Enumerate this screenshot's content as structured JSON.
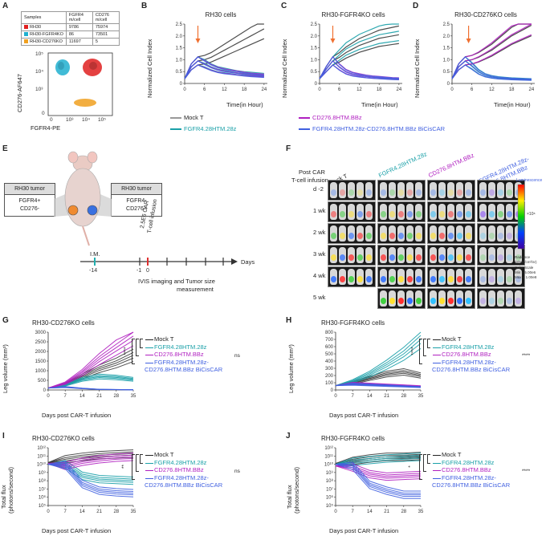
{
  "panels": {
    "A": {
      "label": "A",
      "table_headers": [
        "Samples",
        "FGFR4 m/cell",
        "CD276 m/cell"
      ],
      "rows": [
        {
          "name": "RH30",
          "fgfr4": "9786",
          "cd276": "75974",
          "color": "#e02020"
        },
        {
          "name": "RH30-FGFR4KO",
          "fgfr4": "86",
          "cd276": "73501",
          "color": "#20b0d0"
        },
        {
          "name": "RH30-CD276KO",
          "fgfr4": "11697",
          "cd276": "5",
          "color": "#f0a020"
        }
      ],
      "flow": {
        "ylabel": "CD276-AF647",
        "xlabel": "FGFR4-PE",
        "xticks": [
          "0",
          "10³",
          "10⁴",
          "10⁵"
        ],
        "yticks": [
          "10⁵",
          "10⁴",
          "10³",
          "0"
        ]
      }
    },
    "B": {
      "label": "B",
      "title": "RH30 cells"
    },
    "C": {
      "label": "C",
      "title": "RH30-FGFR4KO cells"
    },
    "D": {
      "label": "D",
      "title": "RH30-CD276KO cells"
    },
    "rtca_common": {
      "ylabel": "Normalized Cell Index",
      "xlabel": "Time(in Hour)",
      "yticks": [
        "0",
        "0.5",
        "1.0",
        "1.5",
        "2.0",
        "2.5"
      ],
      "xticks": [
        "0",
        "6",
        "12",
        "18",
        "24"
      ]
    },
    "legend_top": {
      "mock": "Mock T",
      "fgfr4": "FGFR4.28HTM.28z",
      "cd276": "CD276.8HTM.BBz",
      "bicis": "FGFR4.28HTM.28z-CD276.8HTM.BBz BiCisCAR"
    },
    "E": {
      "label": "E",
      "left_box_header": "RH30 tumor",
      "left_box_body_1": "FGFR4+",
      "left_box_body_2": "CD276-",
      "right_box_header": "RH30 tumor",
      "right_box_body_1": "FGFR4-",
      "right_box_body_2": "CD276+",
      "im_label": "I.M.",
      "car_label_1": "2.5E6 CAR",
      "car_label_2": "T-cell infusion",
      "days_label": "Days",
      "tick_m14": "-14",
      "tick_m1": "-1",
      "tick_0": "0",
      "ivis_label_1": "IVIS imaging and Tumor size",
      "ivis_label_2": "measurement"
    },
    "F": {
      "label": "F",
      "row_header_1": "Post CAR",
      "row_header_2": "T-cell infusion",
      "col_headers": [
        "Mock T",
        "FGFR4.28HTM.28z",
        "CD276.8HTM.BBz",
        "FGFR4.28HTM.28z-\nCD276.8HTM.BBz"
      ],
      "rows": [
        "d -2",
        "1 wk",
        "2 wk",
        "3 wk",
        "4 wk",
        "5 wk"
      ],
      "scale_title": "Luminescence",
      "scale_unit": "×10⁸",
      "scale_note_1": "Radiance",
      "scale_note_2": "(p/sec/cm²/sr)",
      "scale_note_3": "Color Scale",
      "scale_note_4": "Min = 5.00e6",
      "scale_note_5": "Max = 1.00e8"
    },
    "G": {
      "label": "G",
      "title": "RH30-CD276KO cells",
      "ylabel": "Leg volume (mm³)",
      "yticks": [
        "0",
        "500",
        "1000",
        "1500",
        "2000",
        "2500",
        "3000"
      ]
    },
    "H": {
      "label": "H",
      "title": "RH30-FGFR4KO cells",
      "ylabel": "Leg volume (mm³)",
      "yticks": [
        "0",
        "100",
        "200",
        "300",
        "400",
        "500",
        "600",
        "700",
        "800"
      ]
    },
    "I": {
      "label": "I",
      "title": "RH30-CD276KO cells",
      "ylabel_1": "Total flux",
      "ylabel_2": "(photons/second)",
      "yticks": [
        "10⁵",
        "10⁶",
        "10⁷",
        "10⁸",
        "10⁹",
        "10¹⁰",
        "10¹¹",
        "10¹²"
      ]
    },
    "J": {
      "label": "J",
      "title": "RH30-FGFR4KO cells",
      "ylabel_1": "Total flux",
      "ylabel_2": "(photons/second)",
      "yticks": [
        "10⁵",
        "10⁶",
        "10⁷",
        "10⁸",
        "10⁹",
        "10¹⁰",
        "10¹¹",
        "10¹²"
      ]
    },
    "invivo_common": {
      "xlabel": "Days post CAR-T infusion",
      "xticks": [
        "0",
        "7",
        "14",
        "21",
        "28",
        "35"
      ],
      "leg_mock": "Mock T",
      "leg_fgfr4": "FGFR4.28HTM.28z",
      "leg_cd276": "CD276.8HTM.BBz",
      "leg_bicis_1": "FGFR4.28HTM.28z-",
      "leg_bicis_2": "CD276.8HTM.BBz BiCisCAR",
      "sig_stars": "****",
      "sig_ns": "ns",
      "sig_2": "**",
      "sig_1": "*"
    }
  },
  "colors": {
    "mock": "#3a3a3a",
    "fgfr4": "#1aa0a8",
    "cd276": "#b020c0",
    "bicis": "#4060e0",
    "arrow": "#f07030",
    "im_tick": "#20b0b0",
    "car_tick": "#e03030"
  },
  "chart_data": [
    {
      "type": "line",
      "panel": "B",
      "title": "RH30 cells",
      "xlabel": "Time(in Hour)",
      "ylabel": "Normalized Cell Index",
      "xlim": [
        0,
        25
      ],
      "ylim": [
        0,
        2.5
      ],
      "arrow_x": 4,
      "x": [
        0,
        2,
        4,
        6,
        8,
        10,
        12,
        14,
        16,
        18,
        20,
        22,
        24
      ],
      "series": [
        {
          "name": "Mock T",
          "values": [
            0.2,
            0.7,
            0.95,
            1.0,
            1.1,
            1.25,
            1.4,
            1.55,
            1.7,
            1.85,
            2.0,
            2.15,
            2.3
          ]
        },
        {
          "name": "FGFR4.28HTM.28z",
          "values": [
            0.2,
            0.7,
            0.95,
            0.85,
            0.7,
            0.6,
            0.55,
            0.5,
            0.45,
            0.42,
            0.4,
            0.38,
            0.36
          ]
        },
        {
          "name": "CD276.8HTM.BBz",
          "values": [
            0.2,
            0.7,
            0.95,
            0.82,
            0.68,
            0.58,
            0.52,
            0.48,
            0.44,
            0.4,
            0.37,
            0.35,
            0.33
          ]
        },
        {
          "name": "FGFR4.28HTM.28z-CD276.8HTM.BBz BiCisCAR",
          "values": [
            0.2,
            0.7,
            0.95,
            0.8,
            0.66,
            0.56,
            0.5,
            0.46,
            0.42,
            0.38,
            0.35,
            0.33,
            0.31
          ]
        }
      ]
    },
    {
      "type": "line",
      "panel": "C",
      "title": "RH30-FGFR4KO cells",
      "xlabel": "Time(in Hour)",
      "ylabel": "Normalized Cell Index",
      "xlim": [
        0,
        25
      ],
      "ylim": [
        0,
        2.5
      ],
      "arrow_x": 4,
      "x": [
        0,
        2,
        4,
        6,
        8,
        10,
        12,
        14,
        16,
        18,
        20,
        22,
        24
      ],
      "series": [
        {
          "name": "Mock T",
          "values": [
            0.2,
            0.6,
            0.95,
            1.1,
            1.3,
            1.45,
            1.6,
            1.7,
            1.8,
            1.9,
            1.95,
            2.0,
            2.05
          ]
        },
        {
          "name": "FGFR4.28HTM.28z",
          "values": [
            0.2,
            0.6,
            0.95,
            1.2,
            1.45,
            1.6,
            1.75,
            1.85,
            1.95,
            2.05,
            2.1,
            2.15,
            2.2
          ]
        },
        {
          "name": "CD276.8HTM.BBz",
          "values": [
            0.2,
            0.6,
            0.95,
            0.7,
            0.5,
            0.4,
            0.35,
            0.3,
            0.27,
            0.25,
            0.23,
            0.21,
            0.2
          ]
        },
        {
          "name": "FGFR4.28HTM.28z-CD276.8HTM.BBz BiCisCAR",
          "values": [
            0.2,
            0.6,
            0.95,
            0.68,
            0.48,
            0.38,
            0.33,
            0.29,
            0.26,
            0.24,
            0.22,
            0.2,
            0.19
          ]
        }
      ]
    },
    {
      "type": "line",
      "panel": "D",
      "title": "RH30-CD276KO cells",
      "xlabel": "Time(in Hour)",
      "ylabel": "Normalized Cell Index",
      "xlim": [
        0,
        25
      ],
      "ylim": [
        0,
        2.5
      ],
      "arrow_x": 5,
      "x": [
        0,
        2,
        4,
        6,
        8,
        10,
        12,
        14,
        16,
        18,
        20,
        22,
        24
      ],
      "series": [
        {
          "name": "Mock T",
          "values": [
            0.2,
            0.7,
            0.95,
            1.0,
            1.1,
            1.25,
            1.4,
            1.6,
            1.8,
            2.0,
            2.15,
            2.3,
            2.45
          ]
        },
        {
          "name": "FGFR4.28HTM.28z",
          "values": [
            0.2,
            0.7,
            0.95,
            0.75,
            0.5,
            0.35,
            0.28,
            0.24,
            0.22,
            0.2,
            0.19,
            0.18,
            0.17
          ]
        },
        {
          "name": "CD276.8HTM.BBz",
          "values": [
            0.2,
            0.7,
            0.95,
            1.0,
            1.12,
            1.28,
            1.45,
            1.65,
            1.85,
            2.05,
            2.2,
            2.35,
            2.5
          ]
        },
        {
          "name": "FGFR4.28HTM.28z-CD276.8HTM.BBz BiCisCAR",
          "values": [
            0.2,
            0.7,
            0.95,
            0.72,
            0.48,
            0.34,
            0.27,
            0.23,
            0.21,
            0.19,
            0.18,
            0.17,
            0.16
          ]
        }
      ]
    },
    {
      "type": "line",
      "panel": "G",
      "title": "RH30-CD276KO cells",
      "xlabel": "Days post CAR-T infusion",
      "ylabel": "Leg volume (mm³)",
      "xlim": [
        0,
        35
      ],
      "ylim": [
        0,
        3000
      ],
      "x": [
        0,
        7,
        14,
        21,
        28,
        35
      ],
      "series": [
        {
          "name": "Mock T",
          "values": [
            100,
            300,
            700,
            1100,
            1400,
            1800
          ]
        },
        {
          "name": "FGFR4.28HTM.28z",
          "values": [
            100,
            250,
            550,
            700,
            650,
            550
          ]
        },
        {
          "name": "CD276.8HTM.BBz",
          "values": [
            100,
            350,
            900,
            1600,
            2200,
            2800
          ]
        },
        {
          "name": "FGFR4.28HTM.28z-CD276.8HTM.BBz BiCisCAR",
          "values": [
            100,
            150,
            80,
            30,
            20,
            10
          ]
        }
      ]
    },
    {
      "type": "line",
      "panel": "H",
      "title": "RH30-FGFR4KO cells",
      "xlabel": "Days post CAR-T infusion",
      "ylabel": "Leg volume (mm³)",
      "xlim": [
        0,
        35
      ],
      "ylim": [
        0,
        800
      ],
      "x": [
        0,
        7,
        14,
        21,
        28,
        35
      ],
      "series": [
        {
          "name": "Mock T",
          "values": [
            60,
            100,
            160,
            220,
            250,
            200
          ]
        },
        {
          "name": "FGFR4.28HTM.28z",
          "values": [
            60,
            120,
            220,
            350,
            500,
            700
          ]
        },
        {
          "name": "CD276.8HTM.BBz",
          "values": [
            60,
            90,
            80,
            70,
            60,
            50
          ]
        },
        {
          "name": "FGFR4.28HTM.28z-CD276.8HTM.BBz BiCisCAR",
          "values": [
            60,
            80,
            70,
            60,
            50,
            40
          ]
        }
      ]
    },
    {
      "type": "line",
      "panel": "I",
      "title": "RH30-CD276KO cells",
      "xlabel": "Days post CAR-T infusion",
      "ylabel": "Total flux (photons/second)",
      "yscale": "log",
      "xlim": [
        0,
        35
      ],
      "ylim_log10": [
        5,
        12
      ],
      "x": [
        0,
        7,
        14,
        21,
        28,
        35
      ],
      "series": [
        {
          "name": "Mock T",
          "values_log10": [
            10.2,
            10.6,
            10.9,
            11.1,
            11.2,
            11.3
          ]
        },
        {
          "name": "FGFR4.28HTM.28z",
          "values_log10": [
            10.0,
            10.0,
            8.6,
            8.2,
            8.1,
            8.0
          ]
        },
        {
          "name": "CD276.8HTM.BBz",
          "values_log10": [
            10.1,
            9.8,
            10.3,
            10.6,
            10.8,
            10.9
          ]
        },
        {
          "name": "FGFR4.28HTM.28z-CD276.8HTM.BBz BiCisCAR",
          "values_log10": [
            10.0,
            9.9,
            7.6,
            6.8,
            6.6,
            6.5
          ]
        }
      ]
    },
    {
      "type": "line",
      "panel": "J",
      "title": "RH30-FGFR4KO cells",
      "xlabel": "Days post CAR-T infusion",
      "ylabel": "Total flux (photons/second)",
      "yscale": "log",
      "xlim": [
        0,
        35
      ],
      "ylim_log10": [
        5,
        12
      ],
      "x": [
        0,
        7,
        14,
        21,
        28,
        35
      ],
      "series": [
        {
          "name": "Mock T",
          "values_log10": [
            10.1,
            10.4,
            10.7,
            10.9,
            10.9,
            11.0
          ]
        },
        {
          "name": "FGFR4.28HTM.28z",
          "values_log10": [
            10.0,
            10.3,
            10.5,
            10.7,
            10.8,
            10.9
          ]
        },
        {
          "name": "CD276.8HTM.BBz",
          "values_log10": [
            9.8,
            9.6,
            8.8,
            8.5,
            8.6,
            8.7
          ]
        },
        {
          "name": "FGFR4.28HTM.28z-CD276.8HTM.BBz BiCisCAR",
          "values_log10": [
            10.0,
            9.8,
            7.5,
            6.8,
            6.3,
            6.3
          ]
        }
      ]
    }
  ]
}
